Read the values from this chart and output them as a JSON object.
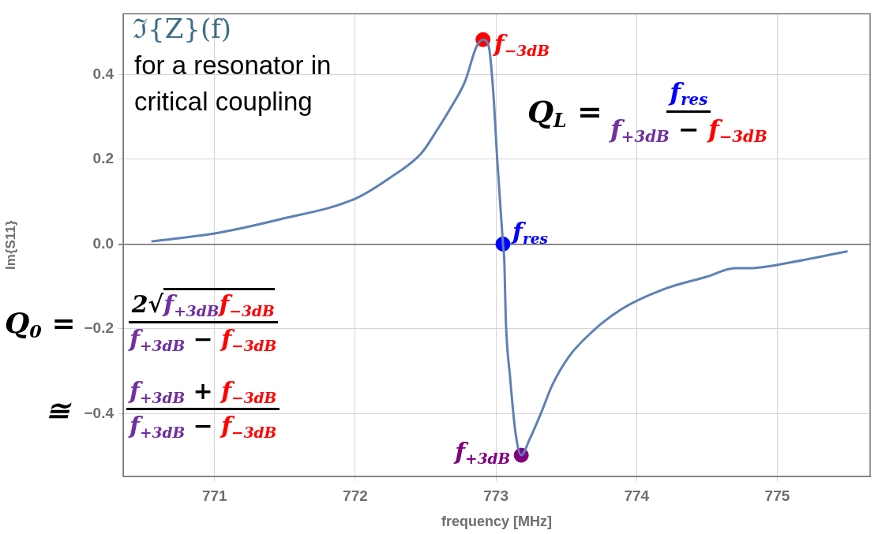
{
  "chart_data": {
    "type": "line",
    "title": "ℑ{Z}(f)",
    "subtitle": "for a resonator in critical coupling",
    "xlabel": "frequency [MHz]",
    "ylabel": "Im{S11}",
    "xlim": [
      770.35,
      775.66
    ],
    "xticks": [
      771,
      772,
      773,
      774,
      775
    ],
    "ylim": [
      -0.548,
      0.543
    ],
    "yticks": [
      {
        "value": -0.4,
        "label": "−0.4"
      },
      {
        "value": -0.2,
        "label": "−0.2"
      },
      {
        "value": 0,
        "label": "0.0"
      },
      {
        "value": 0.2,
        "label": "0.2"
      },
      {
        "value": 0.4,
        "label": "0.4"
      }
    ],
    "grid": true,
    "legend": false,
    "series": [
      {
        "type": "line",
        "color": "#5e81b5",
        "x": [
          770.55,
          771.0,
          771.46,
          772.0,
          772.25,
          772.47,
          772.58,
          772.68,
          772.78,
          772.86,
          772.908,
          772.95,
          772.98,
          773.01,
          773.05,
          773.06,
          773.07,
          773.1,
          773.14,
          773.18,
          773.24,
          773.32,
          773.4,
          773.52,
          773.69,
          773.89,
          774.19,
          774.5,
          774.7,
          774.8,
          775.1,
          775.5
        ],
        "values": [
          0.006,
          0.025,
          0.058,
          0.107,
          0.157,
          0.214,
          0.268,
          0.322,
          0.383,
          0.464,
          0.482,
          0.464,
          0.363,
          0.195,
          0,
          -0.043,
          -0.178,
          -0.312,
          -0.447,
          -0.498,
          -0.46,
          -0.399,
          -0.333,
          -0.265,
          -0.205,
          -0.154,
          -0.107,
          -0.077,
          -0.057,
          -0.057,
          -0.043,
          -0.017
        ]
      },
      {
        "type": "scatter",
        "marker": "circle",
        "colors": [
          "#ff0000",
          "#0000ff",
          "#800080"
        ],
        "x": [
          772.908,
          773.05,
          773.18
        ],
        "values": [
          0.482,
          0,
          -0.498
        ]
      }
    ],
    "annotations": [
      {
        "text": "f$_{−3dB}$",
        "x": 772.908,
        "y": 0.482
      },
      {
        "text": "f$_{res}$",
        "x": 773.05,
        "y": 0
      },
      {
        "text": "f$_{+3dB}$",
        "x": 773.18,
        "y": -0.498
      },
      "Q$_{L}$ =",
      "f$_{res}$",
      "f$_{+3dB}$ − f$_{−3dB}$",
      "Q$_{0}$ =",
      "2√f$_{+3dB}$f$_{−3dB}$",
      "f$_{+3dB}$ − f$_{−3dB}$",
      "≅",
      "f$_{+3dB}$ + f$_{−3dB}$",
      "f$_{+3dB}$ − f$_{−3dB}$"
    ]
  }
}
